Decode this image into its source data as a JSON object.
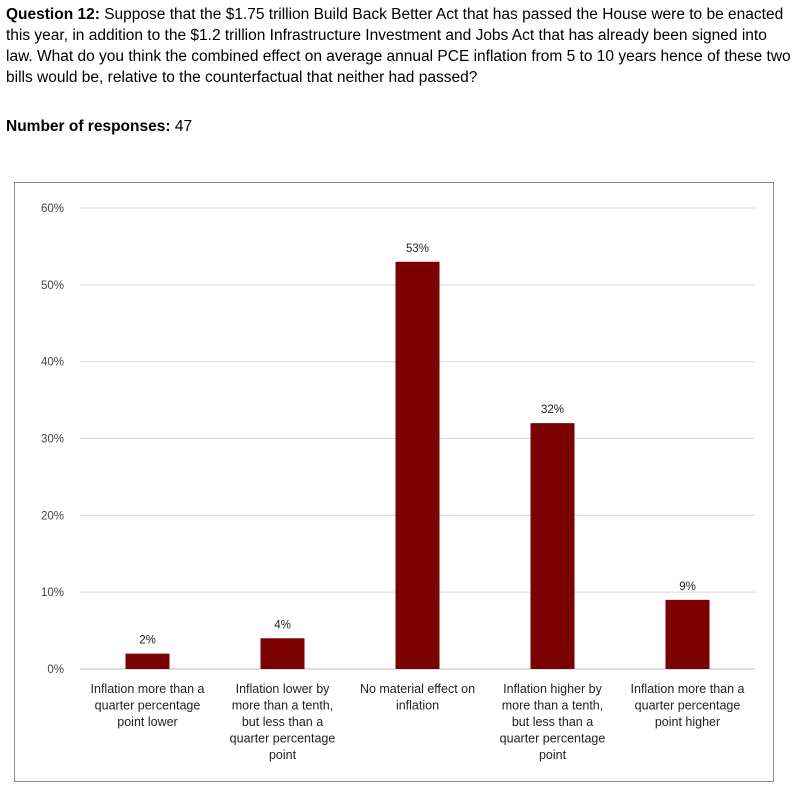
{
  "question": {
    "label": "Question 12:",
    "text": " Suppose that the $1.75 trillion Build Back Better Act that has passed the House were to be enacted this year, in addition to the $1.2 trillion Infrastructure Investment and Jobs Act that has already been signed into law. What do you think the combined effect on average annual PCE inflation from 5 to 10 years hence of these two bills would be, relative to the counterfactual that neither had passed?"
  },
  "responses": {
    "label": "Number of responses:",
    "value": " 47"
  },
  "colors": {
    "bar": "#7b0000",
    "grid": "#d9d9d9",
    "axis": "#bfbfbf"
  },
  "chart_data": {
    "type": "bar",
    "categories": [
      "Inflation more than a quarter percentage point lower",
      "Inflation lower by more than a tenth, but less than a quarter percentage point",
      "No material effect on inflation",
      "Inflation higher by more than a tenth, but less than a quarter percentage point",
      "Inflation more than a quarter percentage point higher"
    ],
    "category_lines": [
      [
        "Inflation more than a",
        "quarter percentage",
        "point lower"
      ],
      [
        "Inflation lower by",
        "more than a tenth,",
        "but less than a",
        "quarter percentage",
        "point"
      ],
      [
        "No material effect on",
        "inflation"
      ],
      [
        "Inflation higher by",
        "more than a tenth,",
        "but less than a",
        "quarter percentage",
        "point"
      ],
      [
        "Inflation more than a",
        "quarter percentage",
        "point higher"
      ]
    ],
    "values": [
      2,
      4,
      53,
      32,
      9
    ],
    "data_labels": [
      "2%",
      "4%",
      "53%",
      "32%",
      "9%"
    ],
    "yticks": [
      0,
      10,
      20,
      30,
      40,
      50,
      60
    ],
    "ytick_labels": [
      "0%",
      "10%",
      "20%",
      "30%",
      "40%",
      "50%",
      "60%"
    ],
    "ylim": [
      0,
      60
    ],
    "grid": true,
    "legend": "none"
  }
}
